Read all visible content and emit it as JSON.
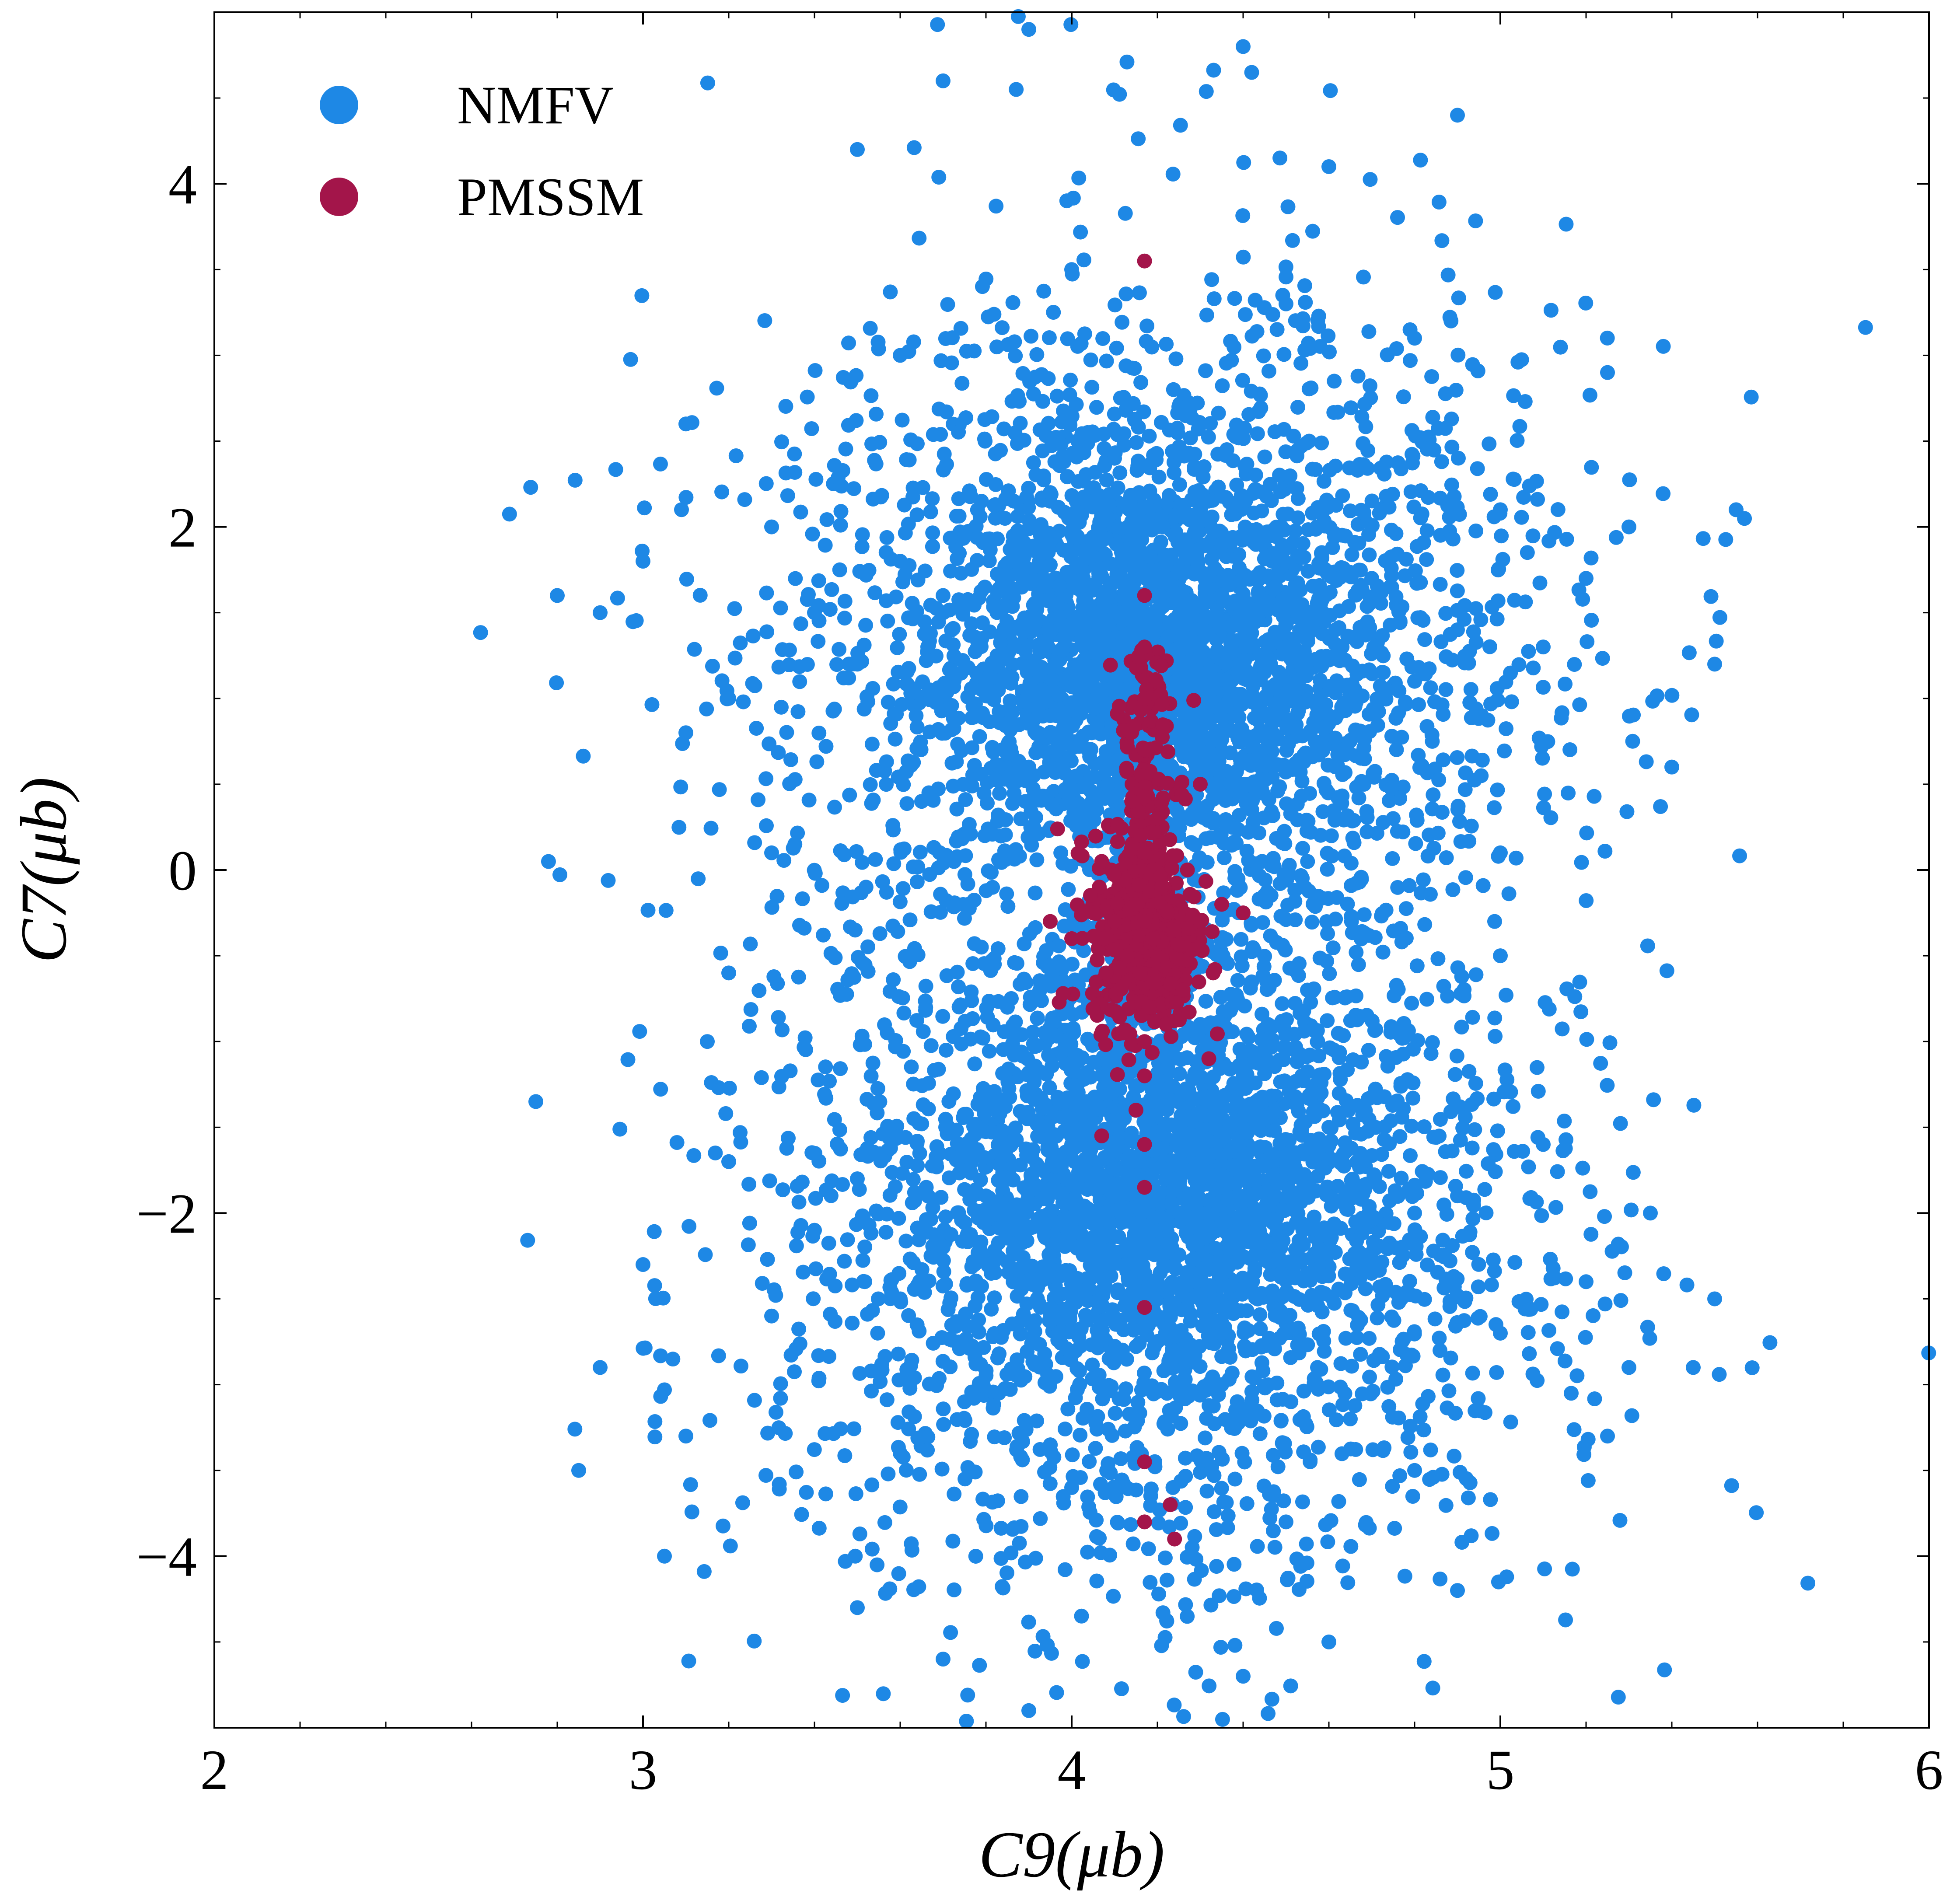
{
  "chart_data": {
    "type": "scatter",
    "title": "",
    "xlabel": "C9(μb)",
    "ylabel": "C7(μb)",
    "xlim": [
      2,
      6
    ],
    "ylim": [
      -5,
      5
    ],
    "xticks": [
      2,
      3,
      4,
      5,
      6
    ],
    "xtick_labels": [
      "2",
      "3",
      "4",
      "5",
      "6"
    ],
    "yticks": [
      -4,
      -2,
      0,
      2,
      4
    ],
    "ytick_labels": [
      "−4",
      "−2",
      "0",
      "2",
      "4"
    ],
    "grid": false,
    "legend_position": "top-left",
    "series": [
      {
        "name": "NMFV",
        "color": "#1e88e5",
        "description_of_distribution": "two dense lobes centered near C7=+1.2 and C7=-1.8, spread in C9 from about 2.7 to 5.6",
        "points": [
          [
            4.17,
            1.2
          ],
          [
            4.0,
            1.4
          ],
          [
            4.3,
            1.0
          ],
          [
            3.8,
            1.1
          ],
          [
            4.5,
            1.3
          ],
          [
            3.7,
            1.6
          ],
          [
            4.6,
            0.9
          ],
          [
            4.2,
            2.0
          ],
          [
            3.9,
            0.6
          ],
          [
            4.4,
            0.5
          ],
          [
            3.6,
            1.8
          ],
          [
            4.7,
            1.7
          ],
          [
            3.5,
            1.2
          ],
          [
            4.8,
            1.1
          ],
          [
            4.1,
            2.4
          ],
          [
            4.25,
            2.7
          ],
          [
            3.95,
            2.2
          ],
          [
            4.35,
            1.9
          ],
          [
            3.4,
            1.5
          ],
          [
            4.9,
            1.4
          ],
          [
            3.3,
            2.0
          ],
          [
            5.0,
            2.1
          ],
          [
            3.2,
            1.0
          ],
          [
            5.1,
            1.3
          ],
          [
            3.0,
            1.8
          ],
          [
            5.2,
            1.7
          ],
          [
            2.9,
            1.5
          ],
          [
            5.3,
            2.0
          ],
          [
            3.1,
            2.6
          ],
          [
            5.25,
            2.9
          ],
          [
            4.0,
            3.5
          ],
          [
            4.5,
            3.3
          ],
          [
            3.6,
            3.0
          ],
          [
            4.8,
            3.1
          ],
          [
            3.5,
            4.2
          ],
          [
            4.9,
            4.4
          ],
          [
            3.7,
            4.6
          ],
          [
            4.4,
            4.8
          ],
          [
            3.9,
            4.9
          ],
          [
            4.6,
            4.1
          ],
          [
            2.8,
            1.6
          ],
          [
            5.55,
            2.1
          ],
          [
            5.5,
            1.2
          ],
          [
            3.1,
            0.8
          ],
          [
            5.4,
            0.6
          ],
          [
            3.3,
            0.1
          ],
          [
            5.0,
            0.1
          ],
          [
            4.1,
            0.3
          ],
          [
            4.25,
            0.2
          ],
          [
            3.95,
            0.9
          ],
          [
            4.45,
            0.8
          ],
          [
            3.65,
            0.4
          ],
          [
            4.75,
            0.3
          ],
          [
            4.17,
            -1.8
          ],
          [
            4.0,
            -1.6
          ],
          [
            4.3,
            -2.0
          ],
          [
            3.8,
            -1.9
          ],
          [
            4.5,
            -1.7
          ],
          [
            3.7,
            -2.2
          ],
          [
            4.6,
            -1.5
          ],
          [
            4.2,
            -2.4
          ],
          [
            3.9,
            -1.3
          ],
          [
            4.4,
            -1.2
          ],
          [
            3.6,
            -2.5
          ],
          [
            4.7,
            -2.3
          ],
          [
            3.5,
            -1.8
          ],
          [
            4.8,
            -2.0
          ],
          [
            4.1,
            -2.8
          ],
          [
            4.25,
            -3.0
          ],
          [
            3.95,
            -2.6
          ],
          [
            4.35,
            -2.7
          ],
          [
            3.4,
            -2.1
          ],
          [
            4.9,
            -1.9
          ],
          [
            3.3,
            -2.6
          ],
          [
            5.0,
            -2.7
          ],
          [
            3.2,
            -1.7
          ],
          [
            5.1,
            -1.6
          ],
          [
            3.0,
            -2.3
          ],
          [
            5.2,
            -2.4
          ],
          [
            2.9,
            -2.9
          ],
          [
            5.3,
            -2.9
          ],
          [
            3.1,
            -3.3
          ],
          [
            5.25,
            -3.3
          ],
          [
            4.0,
            -3.6
          ],
          [
            4.5,
            -3.8
          ],
          [
            3.6,
            -3.4
          ],
          [
            4.8,
            -3.5
          ],
          [
            3.5,
            -4.3
          ],
          [
            4.9,
            -4.2
          ],
          [
            3.7,
            -4.6
          ],
          [
            4.4,
            -4.7
          ],
          [
            3.9,
            -4.9
          ],
          [
            4.6,
            -4.5
          ],
          [
            2.75,
            -1.35
          ],
          [
            5.5,
            -2.5
          ],
          [
            5.45,
            -2.9
          ],
          [
            2.85,
            -3.5
          ],
          [
            3.05,
            -4.0
          ],
          [
            5.35,
            -2.0
          ],
          [
            3.15,
            -1.0
          ],
          [
            5.0,
            -0.5
          ],
          [
            3.2,
            -0.6
          ],
          [
            4.05,
            -1.0
          ],
          [
            4.3,
            -0.9
          ],
          [
            3.85,
            -0.8
          ],
          [
            4.55,
            -0.7
          ],
          [
            3.75,
            -3.1
          ],
          [
            4.65,
            -3.2
          ]
        ]
      },
      {
        "name": "PMSSM",
        "color": "#a3154a",
        "description_of_distribution": "narrow cluster around C9=4.17, C7 between about -1.3 and 1.6, core near C7=-0.3",
        "points": [
          [
            4.17,
            -0.3
          ],
          [
            4.15,
            -0.2
          ],
          [
            4.19,
            -0.4
          ],
          [
            4.13,
            -0.5
          ],
          [
            4.21,
            -0.1
          ],
          [
            4.17,
            0.1
          ],
          [
            4.16,
            -0.6
          ],
          [
            4.18,
            -0.8
          ],
          [
            4.2,
            0.3
          ],
          [
            4.14,
            0.4
          ],
          [
            4.17,
            0.7
          ],
          [
            4.17,
            1.0
          ],
          [
            4.17,
            1.3
          ],
          [
            4.17,
            1.6
          ],
          [
            4.1,
            -0.3
          ],
          [
            4.24,
            -0.35
          ],
          [
            4.05,
            -0.25
          ],
          [
            4.3,
            -0.3
          ],
          [
            4.0,
            -0.4
          ],
          [
            4.35,
            -0.2
          ],
          [
            3.95,
            -0.3
          ],
          [
            4.4,
            -0.25
          ],
          [
            4.17,
            -1.0
          ],
          [
            4.17,
            -1.2
          ],
          [
            4.15,
            -1.4
          ],
          [
            4.17,
            -1.6
          ],
          [
            4.17,
            -1.85
          ],
          [
            4.08,
            -0.6
          ],
          [
            4.26,
            -0.7
          ],
          [
            4.22,
            -0.9
          ],
          [
            4.12,
            -0.95
          ],
          [
            4.27,
            0.0
          ],
          [
            4.07,
            0.05
          ],
          [
            4.17,
            3.55
          ],
          [
            4.17,
            -2.55
          ],
          [
            4.17,
            -3.45
          ],
          [
            4.17,
            -3.8
          ],
          [
            4.23,
            -3.7
          ],
          [
            4.24,
            -3.9
          ],
          [
            3.98,
            -0.72
          ],
          [
            4.33,
            -0.6
          ],
          [
            4.07,
            -1.55
          ],
          [
            4.3,
            0.5
          ],
          [
            4.32,
            -1.1
          ]
        ]
      }
    ]
  }
}
